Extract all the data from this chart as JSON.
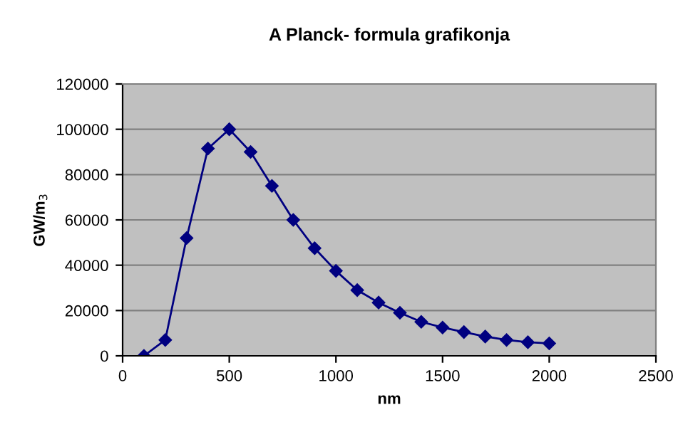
{
  "chart_data": {
    "type": "line",
    "title": "A Planck- formula grafikonja",
    "xlabel": "nm",
    "ylabel": "GW/m$_{3}$",
    "x": [
      100,
      200,
      300,
      400,
      500,
      600,
      700,
      800,
      900,
      1000,
      1100,
      1200,
      1300,
      1400,
      1500,
      1600,
      1700,
      1800,
      1900,
      2000
    ],
    "series": [
      {
        "color": "#000080",
        "values": [
          0,
          7000,
          52000,
          91500,
          100000,
          90000,
          75000,
          60000,
          47500,
          37500,
          29000,
          23500,
          19000,
          15000,
          12500,
          10500,
          8500,
          7000,
          6000,
          5500
        ]
      }
    ],
    "xlim": [
      0,
      2500
    ],
    "xticks": [
      0,
      500,
      1000,
      1500,
      2000,
      2500
    ],
    "ylim": [
      0,
      120000
    ],
    "yticks": [
      0,
      20000,
      40000,
      60000,
      80000,
      100000,
      120000
    ],
    "grid": "y",
    "marker": "diamond",
    "line_style": "solid",
    "legend": false
  }
}
